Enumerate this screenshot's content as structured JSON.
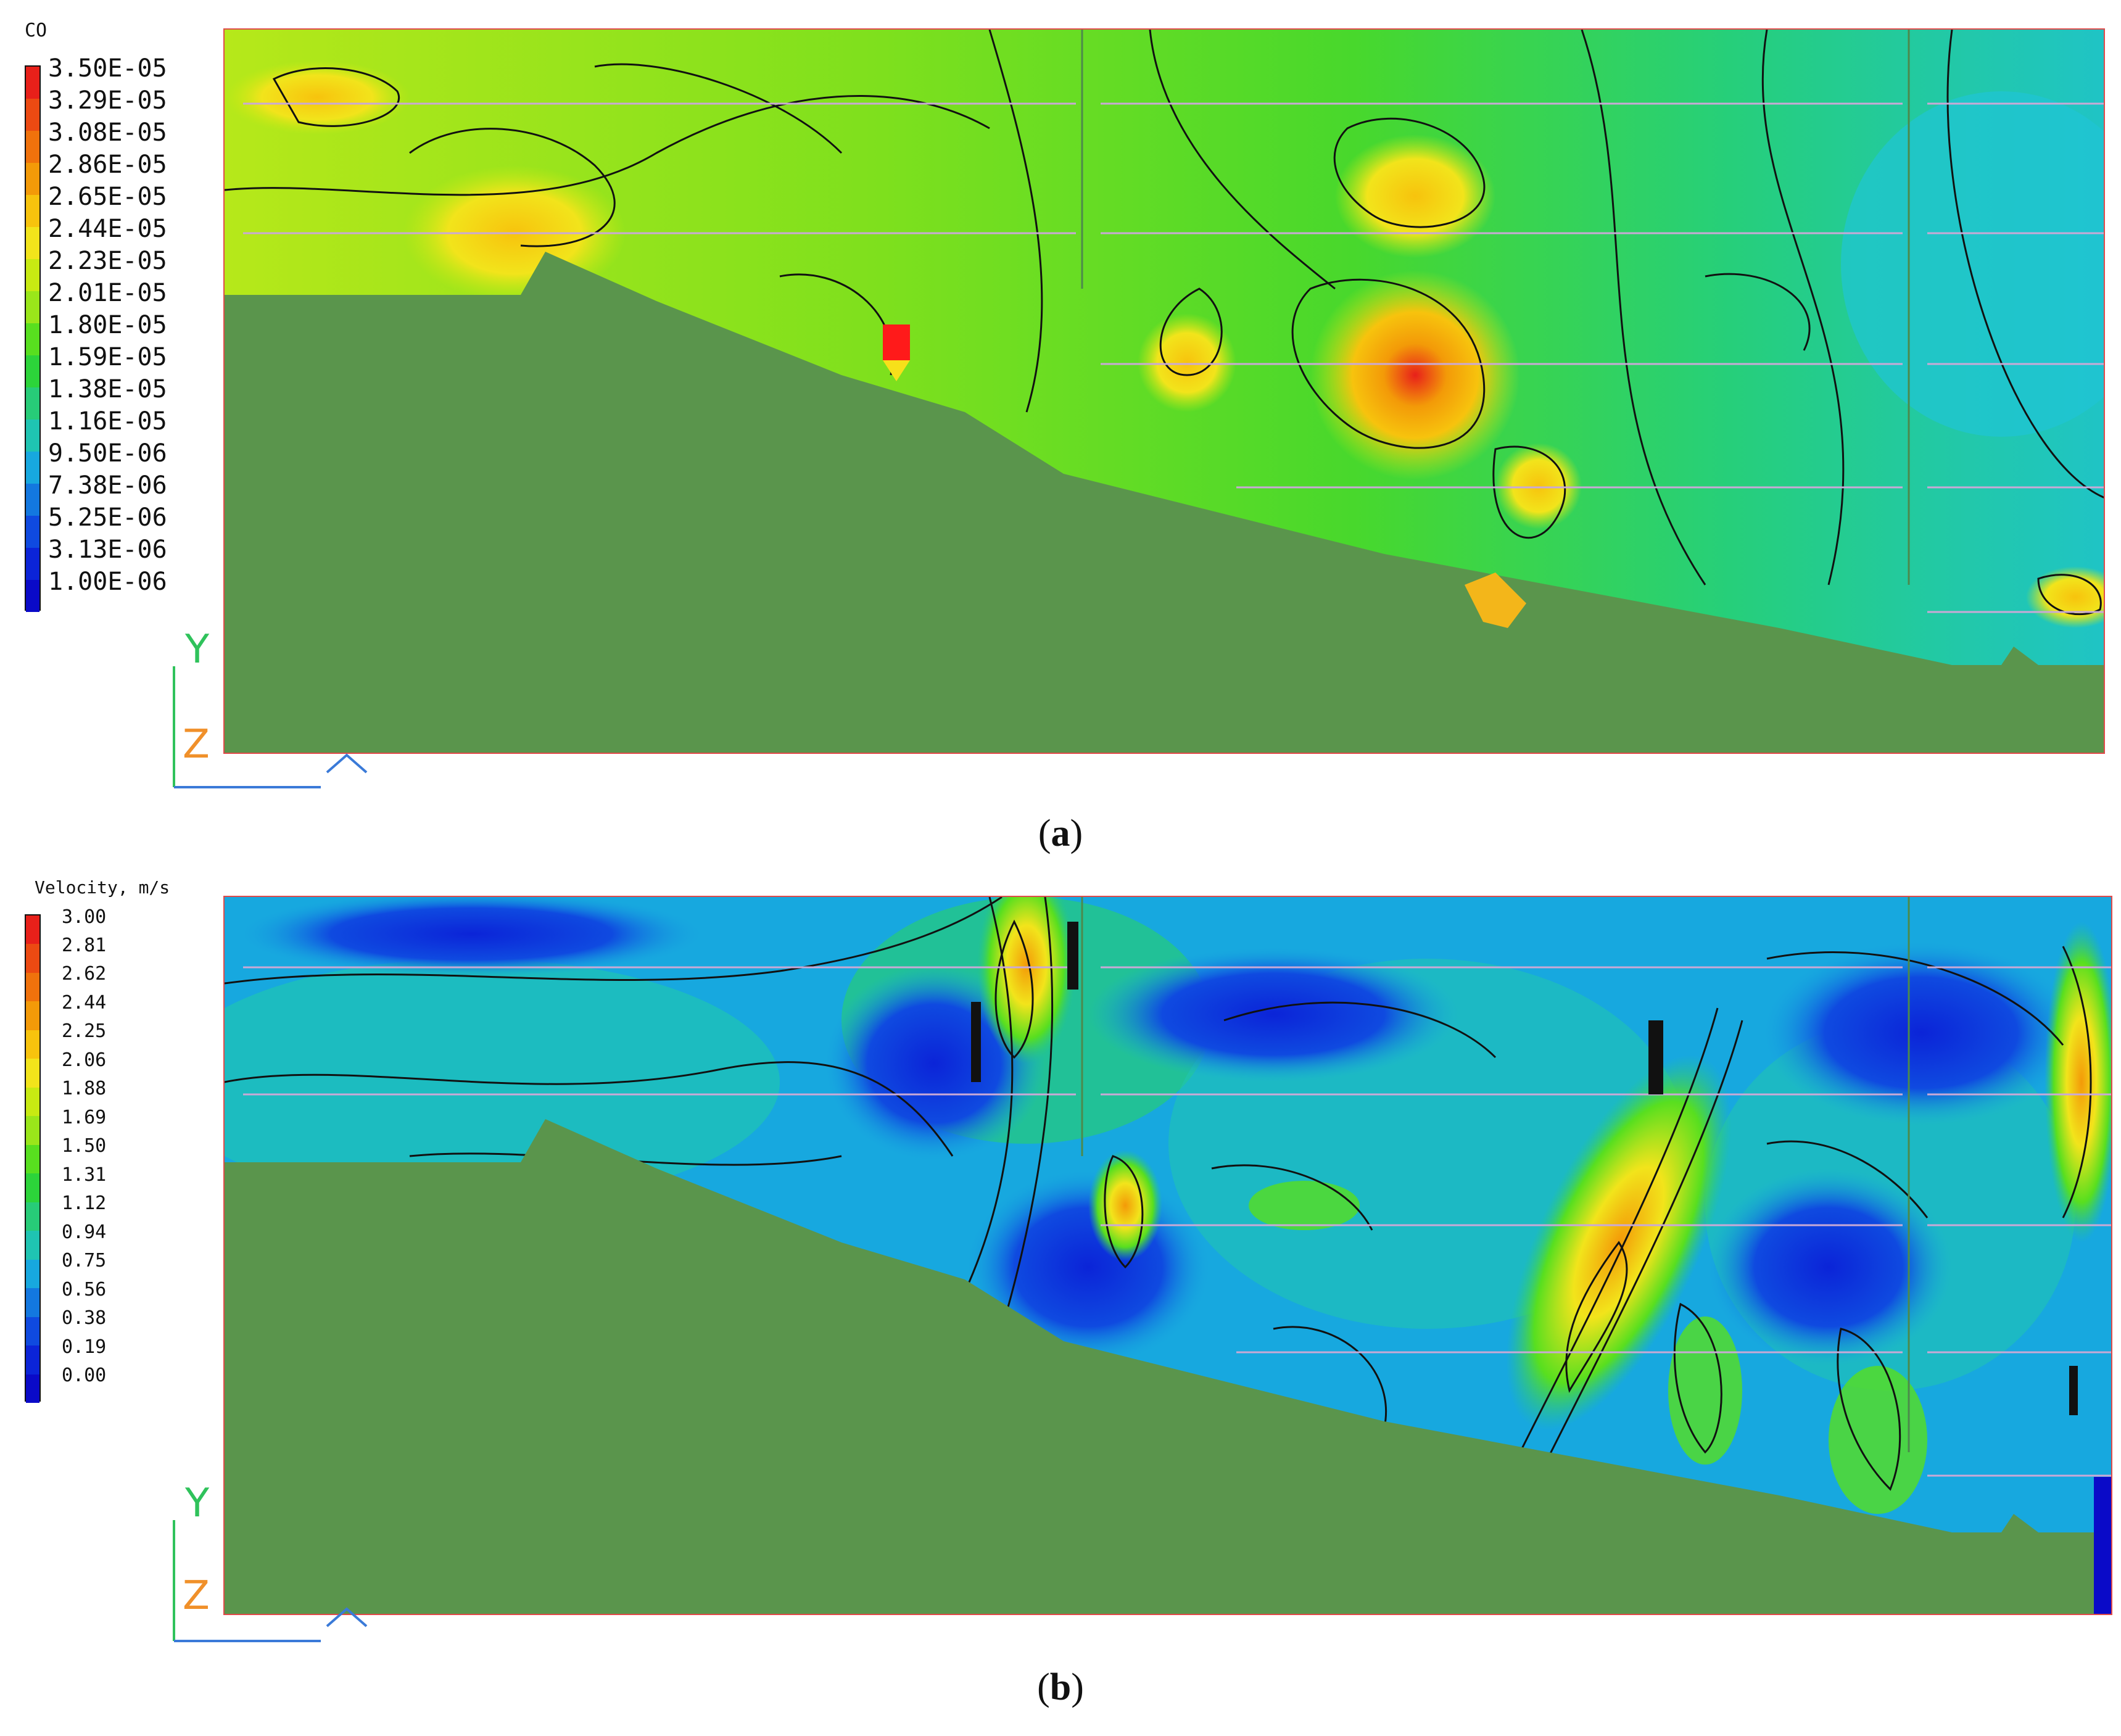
{
  "chart_data": [
    {
      "type": "heatmap",
      "title": "CO",
      "caption_letter": "a",
      "legend_labels": [
        "3.50E-05",
        "3.29E-05",
        "3.08E-05",
        "2.86E-05",
        "2.65E-05",
        "2.44E-05",
        "2.23E-05",
        "2.01E-05",
        "1.80E-05",
        "1.59E-05",
        "1.38E-05",
        "1.16E-05",
        "9.50E-06",
        "7.38E-06",
        "5.25E-06",
        "3.13E-06",
        "1.00E-06"
      ],
      "legend_values": [
        3.5e-05,
        3.29e-05,
        3.08e-05,
        2.86e-05,
        2.65e-05,
        2.44e-05,
        2.23e-05,
        2.01e-05,
        1.8e-05,
        1.59e-05,
        1.38e-05,
        1.16e-05,
        9.5e-06,
        7.38e-06,
        5.25e-06,
        3.13e-06,
        1e-06
      ],
      "legend_colors": [
        "#e8201a",
        "#ec4a12",
        "#f0720c",
        "#f39a08",
        "#f7c30d",
        "#f2e41b",
        "#c8ea12",
        "#9ae61a",
        "#58df1f",
        "#2cd43a",
        "#27cc78",
        "#1fc4b2",
        "#17a8df",
        "#1378e0",
        "#0f4ae0",
        "#0b24d8",
        "#0a0ac8"
      ],
      "axis_labels": {
        "y": "Y",
        "z": "Z"
      }
    },
    {
      "type": "heatmap",
      "title": "Velocity, m/s",
      "caption_letter": "b",
      "legend_labels": [
        "3.00",
        "2.81",
        "2.62",
        "2.44",
        "2.25",
        "2.06",
        "1.88",
        "1.69",
        "1.50",
        "1.31",
        "1.12",
        "0.94",
        "0.75",
        "0.56",
        "0.38",
        "0.19",
        "0.00"
      ],
      "legend_values": [
        3.0,
        2.81,
        2.62,
        2.44,
        2.25,
        2.06,
        1.88,
        1.69,
        1.5,
        1.31,
        1.12,
        0.94,
        0.75,
        0.56,
        0.38,
        0.19,
        0.0
      ],
      "legend_colors": [
        "#e8201a",
        "#ec4a12",
        "#f0720c",
        "#f39a08",
        "#f7c30d",
        "#f2e41b",
        "#c8ea12",
        "#9ae61a",
        "#58df1f",
        "#2cd43a",
        "#27cc78",
        "#1fc4b2",
        "#17a8df",
        "#1378e0",
        "#0f4ae0",
        "#0b24d8",
        "#0a0ac8"
      ],
      "axis_labels": {
        "y": "Y",
        "z": "Z"
      }
    }
  ],
  "terrain_color": "#5a954c",
  "marker_color": "#ff1a1a"
}
